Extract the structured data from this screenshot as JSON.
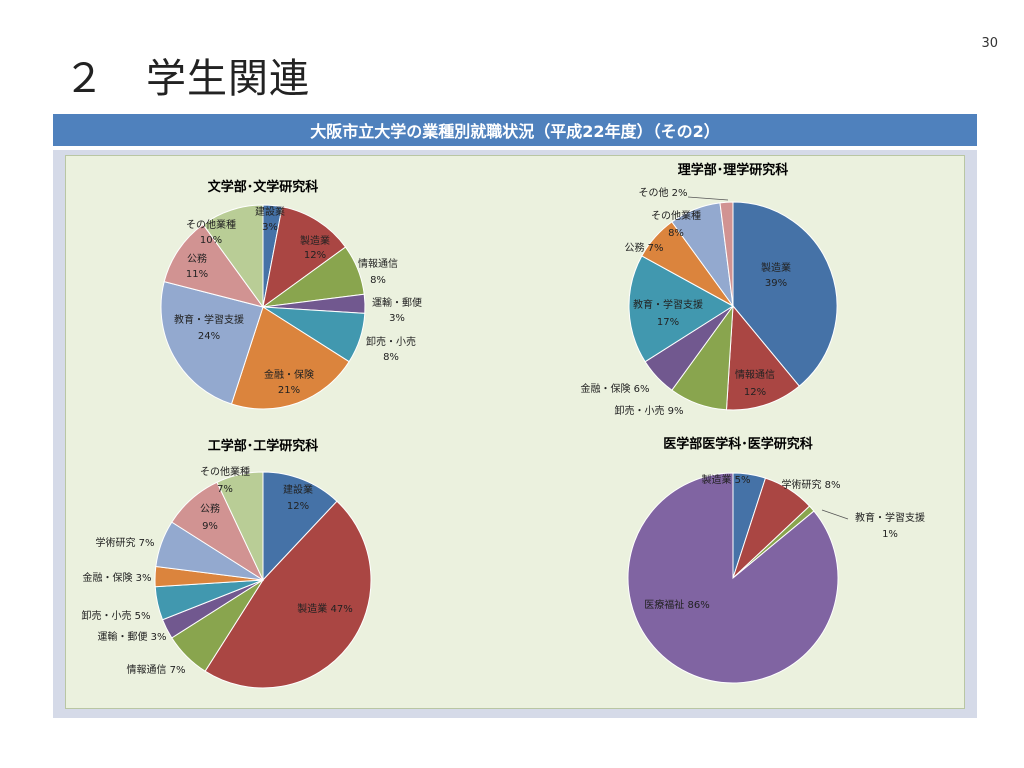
{
  "slide": {
    "page_number": "30",
    "title": "２　学生関連",
    "banner": "大阪市立大学の業種別就職状況（平成22年度）（その2）"
  },
  "chart_data": [
    {
      "type": "pie",
      "title": "文学部･文学研究科",
      "slices": [
        {
          "name": "建設業",
          "value": 3,
          "label": "3%",
          "color": "#4572a7"
        },
        {
          "name": "製造業",
          "value": 12,
          "label": "12%",
          "color": "#aa4643"
        },
        {
          "name": "情報通信",
          "value": 8,
          "label": "8%",
          "color": "#89a54e"
        },
        {
          "name": "運輸・郵便",
          "value": 3,
          "label": "3%",
          "color": "#71588f"
        },
        {
          "name": "卸売・小売",
          "value": 8,
          "label": "8%",
          "color": "#4198af"
        },
        {
          "name": "金融・保険",
          "value": 21,
          "label": "21%",
          "color": "#db843d"
        },
        {
          "name": "教育・学習支援",
          "value": 24,
          "label": "24%",
          "color": "#93a9cf"
        },
        {
          "name": "公務",
          "value": 11,
          "label": "11%",
          "color": "#d19392"
        },
        {
          "name": "その他業種",
          "value": 10,
          "label": "10%",
          "color": "#b9cd96"
        }
      ]
    },
    {
      "type": "pie",
      "title": "理学部･理学研究科",
      "slices": [
        {
          "name": "製造業",
          "value": 39,
          "label": "39%",
          "color": "#4572a7"
        },
        {
          "name": "情報通信",
          "value": 12,
          "label": "12%",
          "color": "#aa4643"
        },
        {
          "name": "卸売・小売",
          "value": 9,
          "label": "9%",
          "color": "#89a54e"
        },
        {
          "name": "金融・保険",
          "value": 6,
          "label": "6%",
          "color": "#71588f"
        },
        {
          "name": "教育・学習支援",
          "value": 17,
          "label": "17%",
          "color": "#4198af"
        },
        {
          "name": "公務",
          "value": 7,
          "label": "7%",
          "color": "#db843d"
        },
        {
          "name": "その他業種",
          "value": 8,
          "label": "8%",
          "color": "#93a9cf"
        },
        {
          "name": "その他",
          "value": 2,
          "label": "2%",
          "color": "#d19392"
        }
      ]
    },
    {
      "type": "pie",
      "title": "工学部･工学研究科",
      "slices": [
        {
          "name": "建設業",
          "value": 12,
          "label": "12%",
          "color": "#4572a7"
        },
        {
          "name": "製造業",
          "value": 47,
          "label": "47%",
          "color": "#aa4643"
        },
        {
          "name": "情報通信",
          "value": 7,
          "label": "7%",
          "color": "#89a54e"
        },
        {
          "name": "運輸・郵便",
          "value": 3,
          "label": "3%",
          "color": "#71588f"
        },
        {
          "name": "卸売・小売",
          "value": 5,
          "label": "5%",
          "color": "#4198af"
        },
        {
          "name": "金融・保険",
          "value": 3,
          "label": "3%",
          "color": "#db843d"
        },
        {
          "name": "学術研究",
          "value": 7,
          "label": "7%",
          "color": "#93a9cf"
        },
        {
          "name": "公務",
          "value": 9,
          "label": "9%",
          "color": "#d19392"
        },
        {
          "name": "その他業種",
          "value": 7,
          "label": "7%",
          "color": "#b9cd96"
        }
      ]
    },
    {
      "type": "pie",
      "title": "医学部医学科･医学研究科",
      "slices": [
        {
          "name": "製造業",
          "value": 5,
          "label": "5%",
          "color": "#4572a7"
        },
        {
          "name": "学術研究",
          "value": 8,
          "label": "8%",
          "color": "#aa4643"
        },
        {
          "name": "教育・学習支援",
          "value": 1,
          "label": "1%",
          "color": "#89a54e"
        },
        {
          "name": "医療福祉",
          "value": 86,
          "label": "86%",
          "color": "#8064a2"
        }
      ]
    }
  ]
}
